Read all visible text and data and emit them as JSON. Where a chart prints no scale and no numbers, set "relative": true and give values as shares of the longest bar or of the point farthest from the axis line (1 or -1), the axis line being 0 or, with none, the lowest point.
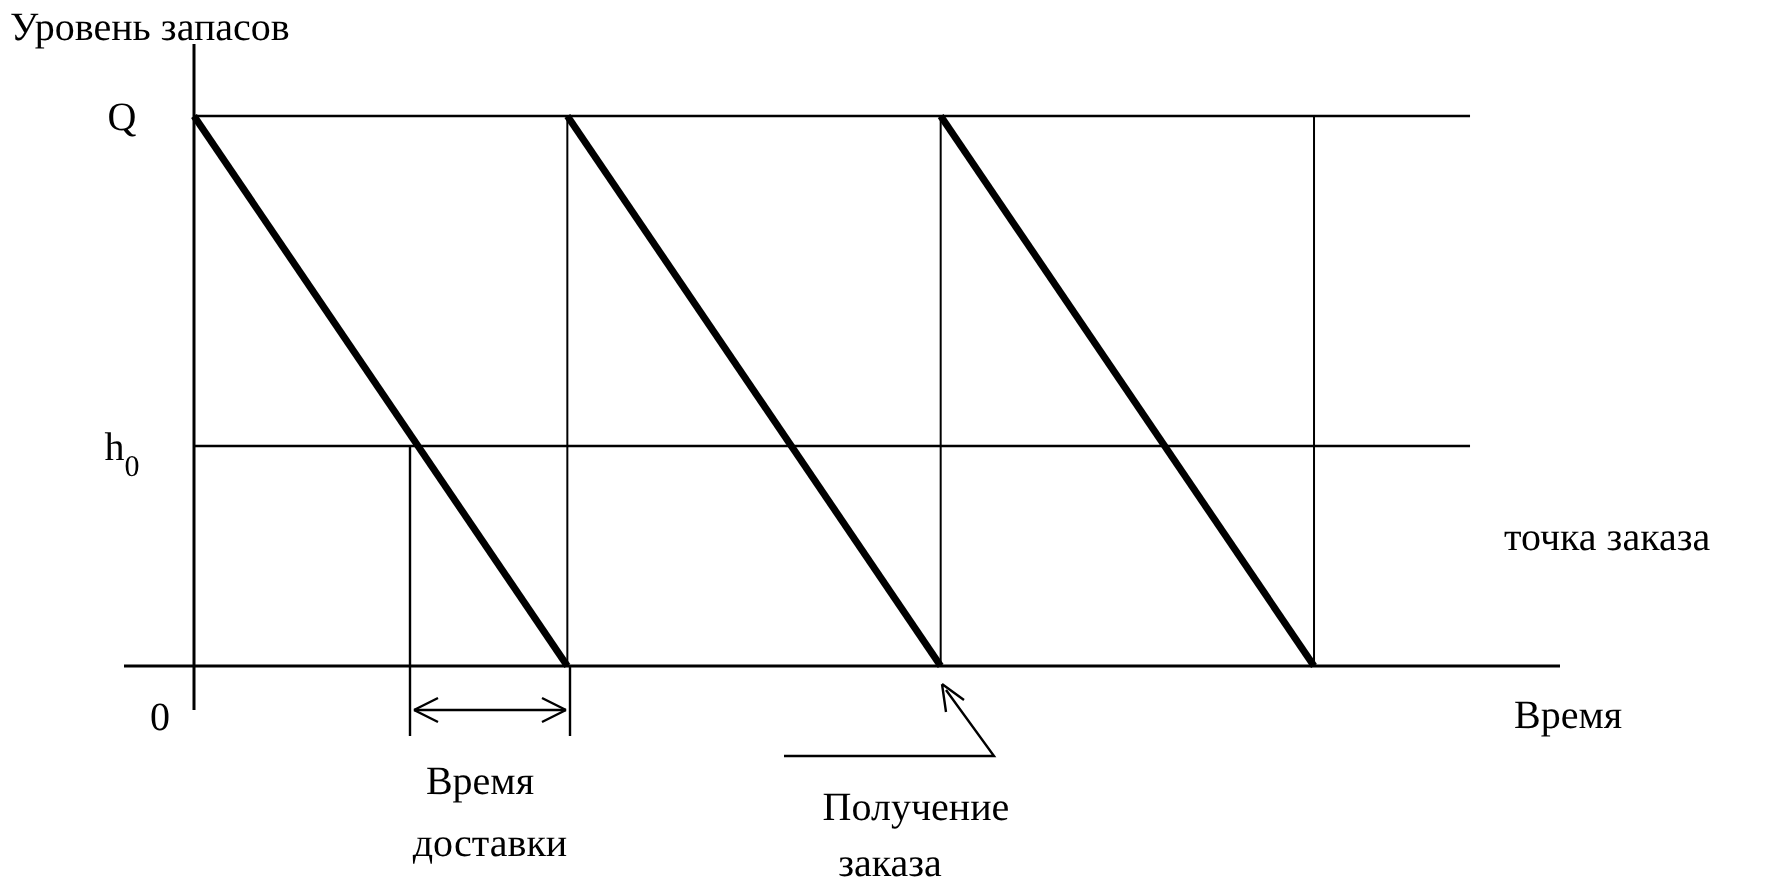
{
  "chart_data": {
    "type": "line",
    "xlabel": "Время",
    "ylabel": "Уровень  запасов",
    "relative": true,
    "annotations": [
      "точка заказа",
      "Время доставки",
      "Получение заказа",
      "0"
    ],
    "categories": [
      null,
      null,
      null,
      null
    ],
    "series": [
      {
        "color": "#000000",
        "values": [
          1,
          0,
          null,
          null
        ]
      },
      {
        "color": "#000000",
        "values": [
          null,
          1,
          0,
          null
        ]
      },
      {
        "color": "#000000",
        "values": [
          null,
          null,
          1,
          0
        ]
      }
    ],
    "ref_lines": [
      {
        "axis": "y",
        "value": 1,
        "label": "Q"
      },
      {
        "axis": "y",
        "value": 0.4,
        "label": "h$_{0}$"
      }
    ],
    "grid": "x",
    "line_style": "solid"
  }
}
